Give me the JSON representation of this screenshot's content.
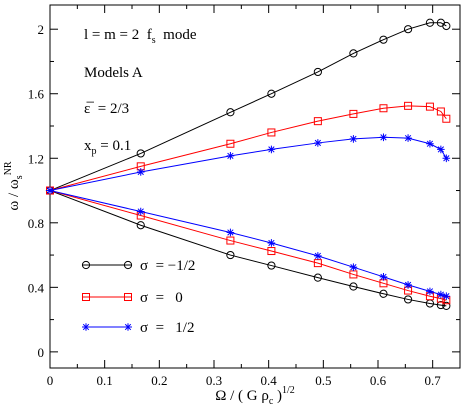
{
  "chart_data": {
    "type": "line",
    "xlabel": "Ω / ( G ρ_c )^1/2",
    "ylabel": "ω / ω_s^NR",
    "xlim": [
      0,
      0.75
    ],
    "ylim": [
      -0.1,
      2.15
    ],
    "x_ticks": [
      0,
      0.1,
      0.2,
      0.3,
      0.4,
      0.5,
      0.6,
      0.7
    ],
    "y_ticks": [
      0,
      0.4,
      0.8,
      1.2,
      1.6,
      2
    ],
    "grid": false,
    "annotations": [
      "l = m = 2   f_s   mode",
      "Models A",
      "ε̄  = 2/3",
      "x_p = 0.1"
    ],
    "legend": {
      "placement": "bottom-left",
      "entries": [
        {
          "label": "σ  = −1/2",
          "color": "#000000",
          "marker": "circle"
        },
        {
          "label": "σ  =   0",
          "color": "#ff0000",
          "marker": "square"
        },
        {
          "label": "σ  =   1/2",
          "color": "#0000ff",
          "marker": "star"
        }
      ]
    },
    "series": [
      {
        "label_ref": 0,
        "branch": "upper",
        "color": "#000000",
        "marker": "circle",
        "x": [
          0,
          0.166,
          0.33,
          0.405,
          0.49,
          0.555,
          0.61,
          0.655,
          0.695,
          0.715,
          0.725
        ],
        "y": [
          1.0,
          1.23,
          1.485,
          1.6,
          1.735,
          1.85,
          1.935,
          2.0,
          2.04,
          2.04,
          2.02
        ]
      },
      {
        "label_ref": 0,
        "branch": "lower",
        "color": "#000000",
        "marker": "circle",
        "x": [
          0,
          0.166,
          0.33,
          0.405,
          0.49,
          0.555,
          0.61,
          0.655,
          0.695,
          0.715,
          0.725
        ],
        "y": [
          1.0,
          0.785,
          0.6,
          0.535,
          0.46,
          0.405,
          0.36,
          0.325,
          0.3,
          0.29,
          0.285
        ]
      },
      {
        "label_ref": 1,
        "branch": "upper",
        "color": "#ff0000",
        "marker": "square",
        "x": [
          0,
          0.166,
          0.33,
          0.405,
          0.49,
          0.555,
          0.61,
          0.655,
          0.695,
          0.715,
          0.725
        ],
        "y": [
          1.0,
          1.15,
          1.29,
          1.36,
          1.43,
          1.475,
          1.51,
          1.525,
          1.52,
          1.49,
          1.445
        ]
      },
      {
        "label_ref": 1,
        "branch": "lower",
        "color": "#ff0000",
        "marker": "square",
        "x": [
          0,
          0.166,
          0.33,
          0.405,
          0.49,
          0.555,
          0.61,
          0.655,
          0.695,
          0.715,
          0.725
        ],
        "y": [
          1.0,
          0.845,
          0.69,
          0.625,
          0.55,
          0.48,
          0.425,
          0.38,
          0.345,
          0.33,
          0.32
        ]
      },
      {
        "label_ref": 2,
        "branch": "upper",
        "color": "#0000ff",
        "marker": "star",
        "x": [
          0,
          0.166,
          0.33,
          0.405,
          0.49,
          0.555,
          0.61,
          0.655,
          0.695,
          0.715,
          0.725
        ],
        "y": [
          1.0,
          1.115,
          1.215,
          1.255,
          1.295,
          1.32,
          1.33,
          1.325,
          1.29,
          1.255,
          1.2
        ]
      },
      {
        "label_ref": 2,
        "branch": "lower",
        "color": "#0000ff",
        "marker": "star",
        "x": [
          0,
          0.166,
          0.33,
          0.405,
          0.49,
          0.555,
          0.61,
          0.655,
          0.695,
          0.715,
          0.725
        ],
        "y": [
          1.0,
          0.87,
          0.74,
          0.675,
          0.595,
          0.525,
          0.465,
          0.415,
          0.375,
          0.355,
          0.345
        ]
      }
    ]
  }
}
